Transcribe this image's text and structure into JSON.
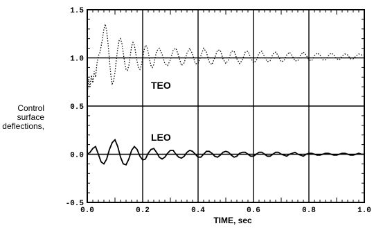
{
  "chart_data": {
    "type": "line",
    "xlabel": "TIME, sec",
    "ylabel_lines": [
      "Control",
      "surface",
      "deflections,"
    ],
    "xlim": [
      0.0,
      1.0
    ],
    "ylim": [
      -0.5,
      1.5
    ],
    "x_ticks": [
      0.0,
      0.2,
      0.4,
      0.6,
      0.8,
      1.0
    ],
    "x_tick_labels": [
      "0.0",
      "0.2",
      "0.4",
      "0.6",
      "0.8",
      "1.0"
    ],
    "y_ticks": [
      -0.5,
      0.0,
      0.5,
      1.0,
      1.5
    ],
    "y_tick_labels": [
      "-0.5",
      "0.0",
      "0.5",
      "1.0",
      "1.5"
    ],
    "grid": true,
    "annotations": [
      {
        "text": "TEO",
        "x": 0.2,
        "y": 0.68
      },
      {
        "text": "LEO",
        "x": 0.2,
        "y": 0.14
      }
    ],
    "series": [
      {
        "name": "TEO",
        "style": "dotted",
        "x": [
          0.0,
          0.005,
          0.01,
          0.015,
          0.02,
          0.025,
          0.03,
          0.035,
          0.04,
          0.045,
          0.05,
          0.055,
          0.06,
          0.065,
          0.07,
          0.075,
          0.08,
          0.085,
          0.09,
          0.095,
          0.1,
          0.105,
          0.11,
          0.115,
          0.12,
          0.125,
          0.13,
          0.135,
          0.14,
          0.145,
          0.15,
          0.155,
          0.16,
          0.165,
          0.17,
          0.175,
          0.18,
          0.185,
          0.19,
          0.195,
          0.2,
          0.205,
          0.21,
          0.215,
          0.22,
          0.225,
          0.23,
          0.235,
          0.24,
          0.245,
          0.25,
          0.26,
          0.27,
          0.28,
          0.29,
          0.3,
          0.31,
          0.32,
          0.33,
          0.34,
          0.35,
          0.36,
          0.37,
          0.38,
          0.39,
          0.4,
          0.41,
          0.42,
          0.43,
          0.44,
          0.45,
          0.46,
          0.47,
          0.48,
          0.49,
          0.5,
          0.51,
          0.52,
          0.53,
          0.54,
          0.55,
          0.56,
          0.57,
          0.58,
          0.59,
          0.6,
          0.61,
          0.62,
          0.63,
          0.64,
          0.65,
          0.66,
          0.67,
          0.68,
          0.69,
          0.7,
          0.71,
          0.72,
          0.73,
          0.74,
          0.75,
          0.76,
          0.77,
          0.78,
          0.79,
          0.8,
          0.81,
          0.82,
          0.83,
          0.84,
          0.85,
          0.86,
          0.87,
          0.88,
          0.89,
          0.9,
          0.91,
          0.92,
          0.93,
          0.94,
          0.95,
          0.96,
          0.97,
          0.98,
          0.99,
          1.0
        ],
        "y": [
          0.62,
          0.78,
          0.7,
          0.82,
          0.74,
          0.86,
          0.8,
          0.94,
          1.02,
          1.05,
          1.12,
          1.2,
          1.3,
          1.35,
          1.28,
          1.15,
          0.98,
          0.82,
          0.73,
          0.76,
          0.85,
          0.98,
          1.1,
          1.18,
          1.2,
          1.15,
          1.05,
          0.95,
          0.88,
          0.87,
          0.92,
          1.02,
          1.12,
          1.16,
          1.13,
          1.05,
          0.96,
          0.9,
          0.88,
          0.92,
          1.0,
          1.08,
          1.13,
          1.12,
          1.06,
          0.98,
          0.92,
          0.9,
          0.93,
          1.0,
          1.07,
          1.1,
          1.04,
          0.94,
          0.92,
          0.98,
          1.08,
          1.1,
          1.02,
          0.92,
          0.95,
          1.05,
          1.1,
          1.04,
          0.94,
          0.94,
          1.02,
          1.1,
          1.06,
          0.96,
          0.93,
          1.0,
          1.08,
          1.08,
          0.99,
          0.94,
          0.98,
          1.07,
          1.07,
          0.99,
          0.94,
          0.98,
          1.06,
          1.07,
          1.0,
          0.95,
          0.97,
          1.05,
          1.07,
          1.01,
          0.96,
          0.97,
          1.04,
          1.06,
          1.02,
          0.96,
          0.97,
          1.03,
          1.06,
          1.02,
          0.97,
          0.97,
          1.03,
          1.06,
          1.03,
          0.98,
          0.97,
          1.02,
          1.05,
          1.03,
          0.98,
          0.98,
          1.02,
          1.05,
          1.03,
          0.99,
          0.98,
          1.02,
          1.04,
          1.03,
          0.99,
          0.99,
          1.02,
          1.04,
          1.03,
          1.03
        ]
      },
      {
        "name": "LEO",
        "style": "solid",
        "x": [
          0.0,
          0.01,
          0.02,
          0.03,
          0.04,
          0.05,
          0.06,
          0.07,
          0.08,
          0.09,
          0.1,
          0.11,
          0.12,
          0.13,
          0.14,
          0.15,
          0.16,
          0.17,
          0.18,
          0.19,
          0.2,
          0.21,
          0.22,
          0.23,
          0.24,
          0.25,
          0.26,
          0.27,
          0.28,
          0.29,
          0.3,
          0.31,
          0.32,
          0.33,
          0.34,
          0.35,
          0.36,
          0.37,
          0.38,
          0.39,
          0.4,
          0.41,
          0.42,
          0.43,
          0.44,
          0.45,
          0.46,
          0.47,
          0.48,
          0.49,
          0.5,
          0.51,
          0.52,
          0.53,
          0.54,
          0.55,
          0.56,
          0.57,
          0.58,
          0.59,
          0.6,
          0.61,
          0.62,
          0.63,
          0.64,
          0.65,
          0.66,
          0.67,
          0.68,
          0.69,
          0.7,
          0.71,
          0.72,
          0.73,
          0.74,
          0.75,
          0.76,
          0.77,
          0.78,
          0.79,
          0.8,
          0.81,
          0.82,
          0.83,
          0.84,
          0.85,
          0.86,
          0.87,
          0.88,
          0.89,
          0.9,
          0.91,
          0.92,
          0.93,
          0.94,
          0.95,
          0.96,
          0.97,
          0.98,
          0.99,
          1.0
        ],
        "y": [
          0.0,
          0.02,
          0.06,
          0.08,
          0.0,
          -0.08,
          -0.1,
          -0.05,
          0.05,
          0.12,
          0.15,
          0.08,
          -0.03,
          -0.1,
          -0.11,
          -0.05,
          0.04,
          0.08,
          0.05,
          -0.02,
          -0.06,
          -0.05,
          0.01,
          0.05,
          0.06,
          0.02,
          -0.03,
          -0.05,
          -0.03,
          0.01,
          0.04,
          0.04,
          0.0,
          -0.03,
          -0.04,
          -0.02,
          0.02,
          0.04,
          0.03,
          0.0,
          -0.03,
          -0.03,
          0.0,
          0.03,
          0.03,
          0.01,
          -0.02,
          -0.03,
          -0.01,
          0.02,
          0.03,
          0.02,
          -0.01,
          -0.03,
          -0.02,
          0.01,
          0.02,
          0.02,
          0.0,
          -0.02,
          -0.02,
          0.0,
          0.02,
          0.02,
          0.0,
          -0.02,
          -0.02,
          0.0,
          0.02,
          0.02,
          0.0,
          -0.01,
          -0.02,
          0.0,
          0.01,
          0.02,
          0.0,
          -0.01,
          -0.02,
          0.0,
          0.01,
          0.01,
          0.0,
          -0.01,
          -0.01,
          0.0,
          0.01,
          0.01,
          0.0,
          -0.01,
          -0.01,
          0.0,
          0.01,
          0.01,
          0.0,
          -0.01,
          -0.01,
          0.0,
          0.01,
          0.0,
          0.0
        ]
      }
    ]
  }
}
